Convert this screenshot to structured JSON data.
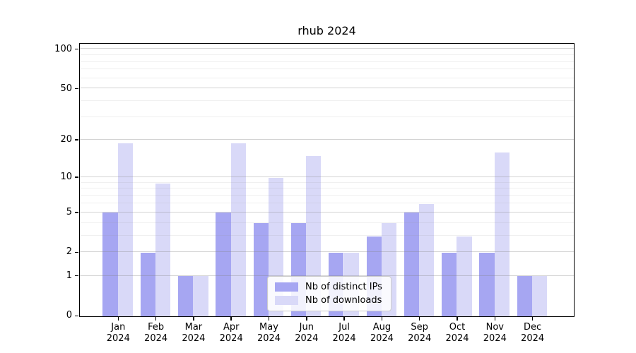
{
  "chart_data": {
    "type": "bar",
    "title": "rhub 2024",
    "categories": [
      [
        "Jan",
        "2024"
      ],
      [
        "Feb",
        "2024"
      ],
      [
        "Mar",
        "2024"
      ],
      [
        "Apr",
        "2024"
      ],
      [
        "May",
        "2024"
      ],
      [
        "Jun",
        "2024"
      ],
      [
        "Jul",
        "2024"
      ],
      [
        "Aug",
        "2024"
      ],
      [
        "Sep",
        "2024"
      ],
      [
        "Oct",
        "2024"
      ],
      [
        "Nov",
        "2024"
      ],
      [
        "Dec",
        "2024"
      ]
    ],
    "series": [
      {
        "name": "Nb of distinct IPs",
        "color": "#a6a6f2",
        "values": [
          5,
          2,
          1,
          5,
          4,
          4,
          2,
          3,
          5,
          2,
          2,
          1
        ]
      },
      {
        "name": "Nb of downloads",
        "color": "#d9d9f8",
        "values": [
          19,
          9,
          1,
          19,
          10,
          15,
          2,
          4,
          6,
          3,
          16,
          1
        ]
      }
    ],
    "xlabel": "",
    "ylabel": "",
    "yscale": "log1p",
    "ylim": [
      0,
      109
    ],
    "y_major_ticks": [
      0,
      1,
      2,
      5,
      10,
      20,
      50,
      100
    ],
    "y_minor_gridlines": [
      3,
      4,
      6,
      7,
      8,
      9,
      30,
      40,
      60,
      70,
      80,
      90
    ],
    "grid": true,
    "grid_above_bars": true,
    "legend_position": "lower center",
    "colors": {
      "spine": "#000000",
      "major_grid": "#d0d0d0",
      "minor_grid": "#e9e9e9",
      "background": "#ffffff"
    }
  }
}
